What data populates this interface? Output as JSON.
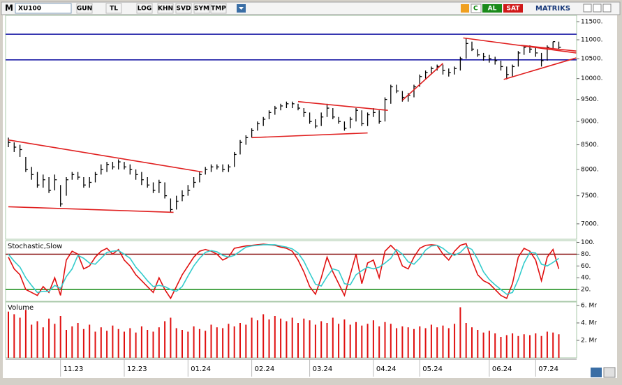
{
  "toolbar": {
    "logo": "M",
    "symbol": "XU100",
    "buttons": [
      "GUN",
      "TL",
      "LOG",
      "KHN",
      "SVD",
      "SYM",
      "TMP"
    ],
    "c": "C",
    "buy": "AL",
    "sell": "SAT",
    "brand": "MATRIKS"
  },
  "chart_data": [
    {
      "type": "ohlc",
      "categories": [
        null,
        null,
        null,
        null,
        null,
        null,
        null,
        null,
        null,
        "11.23",
        null,
        null,
        null,
        null,
        null,
        null,
        null,
        null,
        null,
        null,
        "12.23",
        null,
        null,
        null,
        null,
        null,
        null,
        null,
        null,
        null,
        null,
        "01.24",
        null,
        null,
        null,
        null,
        null,
        null,
        null,
        null,
        null,
        null,
        "02.24",
        null,
        null,
        null,
        null,
        null,
        null,
        null,
        null,
        null,
        "03.24",
        null,
        null,
        null,
        null,
        null,
        null,
        null,
        null,
        null,
        null,
        "04.24",
        null,
        null,
        null,
        null,
        null,
        null,
        null,
        "05.24",
        null,
        null,
        null,
        null,
        null,
        null,
        null,
        null,
        null,
        null,
        null,
        "06.24",
        null,
        null,
        null,
        null,
        null,
        null,
        null,
        "07.24",
        null,
        null,
        null,
        null
      ],
      "high": [
        8650,
        8550,
        8500,
        8250,
        8050,
        7950,
        7900,
        7850,
        7900,
        7700,
        7850,
        7950,
        7950,
        7850,
        7850,
        7950,
        8100,
        8150,
        8150,
        8200,
        8150,
        8100,
        8000,
        7950,
        7850,
        7750,
        7800,
        7750,
        7450,
        7500,
        7600,
        7700,
        7850,
        7950,
        8050,
        8100,
        8100,
        8100,
        8100,
        8350,
        8600,
        8700,
        8850,
        9000,
        9100,
        9250,
        9350,
        9400,
        9450,
        9450,
        9400,
        9300,
        9200,
        9050,
        9200,
        9400,
        9300,
        9100,
        9000,
        9100,
        9300,
        9250,
        9200,
        9300,
        9250,
        9550,
        9850,
        9850,
        9700,
        9650,
        9850,
        10100,
        10200,
        10300,
        10350,
        10350,
        10250,
        10300,
        10550,
        11050,
        10950,
        10750,
        10650,
        10600,
        10550,
        10450,
        10300,
        10350,
        10700,
        10850,
        10850,
        10800,
        10650,
        10850,
        10950,
        10950
      ],
      "low": [
        8450,
        8350,
        8250,
        7950,
        7800,
        7650,
        7650,
        7550,
        7600,
        7300,
        7500,
        7800,
        7800,
        7650,
        7650,
        7750,
        7900,
        7950,
        8000,
        8000,
        8000,
        7900,
        7800,
        7700,
        7650,
        7550,
        7550,
        7450,
        7200,
        7250,
        7400,
        7500,
        7650,
        7750,
        7900,
        7950,
        8000,
        7950,
        7950,
        8050,
        8300,
        8500,
        8650,
        8800,
        8900,
        9050,
        9150,
        9250,
        9300,
        9300,
        9250,
        9100,
        8950,
        8850,
        8900,
        9100,
        9050,
        8950,
        8800,
        8850,
        9000,
        8900,
        8900,
        9100,
        8950,
        9000,
        9400,
        9650,
        9450,
        9450,
        9550,
        9800,
        10000,
        10100,
        10200,
        10100,
        10050,
        10100,
        10200,
        10500,
        10700,
        10550,
        10450,
        10400,
        10350,
        10200,
        9980,
        10050,
        10300,
        10600,
        10650,
        10550,
        10300,
        10450,
        10750,
        10750
      ],
      "close": [
        8550,
        8450,
        8400,
        8000,
        7900,
        7700,
        7800,
        7600,
        7800,
        7350,
        7800,
        7900,
        7850,
        7700,
        7750,
        7900,
        8000,
        8100,
        8050,
        8150,
        8050,
        8000,
        7900,
        7800,
        7700,
        7600,
        7750,
        7500,
        7250,
        7400,
        7500,
        7600,
        7750,
        7900,
        8000,
        8050,
        8050,
        8000,
        8050,
        8300,
        8550,
        8650,
        8800,
        8950,
        9050,
        9200,
        9300,
        9350,
        9400,
        9400,
        9300,
        9200,
        9000,
        8900,
        9100,
        9300,
        9100,
        9000,
        8850,
        9050,
        9250,
        8950,
        9150,
        9200,
        9000,
        9500,
        9800,
        9700,
        9550,
        9600,
        9800,
        10050,
        10150,
        10250,
        10300,
        10200,
        10150,
        10250,
        10500,
        10900,
        10750,
        10600,
        10550,
        10500,
        10450,
        10300,
        10100,
        10300,
        10650,
        10800,
        10750,
        10650,
        10450,
        10800,
        10950,
        10800
      ],
      "color": "#000000",
      "log_scale": true,
      "ylim": [
        6740,
        11680
      ],
      "yticks": [
        {
          "value": 7000,
          "label": "7000."
        },
        {
          "value": 7500,
          "label": "7500."
        },
        {
          "value": 8000,
          "label": "8000."
        },
        {
          "value": 8500,
          "label": "8500."
        },
        {
          "value": 9000,
          "label": "9000."
        },
        {
          "value": 9500,
          "label": "9500."
        },
        {
          "value": 10000,
          "label": "10000."
        },
        {
          "value": 10500,
          "label": "10500."
        },
        {
          "value": 11000,
          "label": "11000."
        },
        {
          "value": 11500,
          "label": "11500."
        }
      ],
      "hlines": [
        {
          "value": 11150,
          "color": "#1a1aa6"
        },
        {
          "value": 10470,
          "color": "#1a1aa6"
        }
      ],
      "trendlines": [
        {
          "x": [
            0,
            33.5
          ],
          "y": [
            8600,
            7950
          ],
          "color": "#e02020"
        },
        {
          "x": [
            0,
            28.5
          ],
          "y": [
            7300,
            7200
          ],
          "color": "#e02020"
        },
        {
          "x": [
            42,
            62
          ],
          "y": [
            8650,
            8750
          ],
          "color": "#e02020"
        },
        {
          "x": [
            50,
            65.5
          ],
          "y": [
            9450,
            9250
          ],
          "color": "#e02020"
        },
        {
          "x": [
            68,
            75
          ],
          "y": [
            9480,
            10380
          ],
          "color": "#e02020"
        },
        {
          "x": [
            78.5,
            98
          ],
          "y": [
            11050,
            10650
          ],
          "color": "#e02020"
        },
        {
          "x": [
            85.5,
            98
          ],
          "y": [
            9980,
            10520
          ],
          "color": "#e02020"
        },
        {
          "x": [
            88.5,
            98
          ],
          "y": [
            10850,
            10700
          ],
          "color": "#e02020"
        }
      ]
    },
    {
      "type": "line",
      "title": "Stochastic,Slow",
      "series": [
        {
          "color": "#e01010",
          "values": [
            75,
            55,
            45,
            20,
            15,
            10,
            25,
            15,
            40,
            10,
            70,
            85,
            80,
            55,
            60,
            75,
            85,
            90,
            80,
            88,
            70,
            60,
            45,
            35,
            25,
            15,
            40,
            20,
            5,
            25,
            45,
            60,
            75,
            85,
            88,
            85,
            80,
            70,
            75,
            90,
            92,
            94,
            95,
            96,
            97,
            96,
            95,
            92,
            90,
            85,
            70,
            50,
            25,
            12,
            40,
            75,
            50,
            30,
            10,
            45,
            80,
            30,
            65,
            70,
            40,
            85,
            95,
            85,
            60,
            55,
            75,
            90,
            95,
            96,
            95,
            80,
            70,
            85,
            95,
            98,
            70,
            45,
            35,
            30,
            20,
            10,
            5,
            30,
            75,
            90,
            85,
            70,
            35,
            75,
            88,
            55
          ]
        },
        {
          "color": "#33cccc",
          "values": [
            80,
            68,
            58,
            40,
            27,
            15,
            17,
            17,
            27,
            22,
            42,
            55,
            78,
            73,
            65,
            63,
            73,
            83,
            85,
            86,
            80,
            73,
            58,
            47,
            35,
            25,
            27,
            25,
            20,
            17,
            25,
            43,
            60,
            73,
            83,
            86,
            84,
            78,
            75,
            78,
            85,
            92,
            94,
            95,
            96,
            96,
            96,
            94,
            92,
            89,
            82,
            68,
            48,
            29,
            26,
            42,
            55,
            52,
            30,
            28,
            45,
            52,
            58,
            55,
            58,
            65,
            73,
            88,
            80,
            67,
            63,
            73,
            87,
            94,
            95,
            90,
            82,
            78,
            83,
            93,
            88,
            71,
            50,
            37,
            28,
            20,
            12,
            15,
            37,
            65,
            83,
            82,
            63,
            60,
            66,
            73
          ]
        }
      ],
      "ylim": [
        0,
        103
      ],
      "yticks": [
        {
          "value": 20,
          "label": "20."
        },
        {
          "value": 40,
          "label": "40."
        },
        {
          "value": 60,
          "label": "60."
        },
        {
          "value": 80,
          "label": "80."
        },
        {
          "value": 100,
          "label": "100."
        }
      ],
      "levels": [
        {
          "value": 80,
          "color": "#800000"
        },
        {
          "value": 20,
          "color": "#008000"
        }
      ]
    },
    {
      "type": "bar",
      "title": "Volume",
      "values": [
        5.3,
        5.0,
        4.6,
        5.5,
        3.8,
        4.2,
        3.5,
        4.5,
        3.9,
        4.8,
        3.2,
        3.6,
        4.0,
        3.3,
        3.8,
        3.0,
        3.5,
        3.1,
        3.7,
        3.3,
        3.0,
        3.4,
        2.9,
        3.6,
        3.2,
        3.0,
        3.5,
        4.2,
        4.6,
        3.4,
        3.2,
        3.0,
        3.6,
        3.3,
        3.1,
        3.8,
        3.5,
        3.4,
        3.9,
        3.6,
        4.0,
        3.8,
        4.6,
        4.3,
        5.0,
        4.4,
        4.8,
        4.5,
        4.2,
        4.6,
        4.0,
        4.5,
        4.3,
        3.8,
        4.2,
        4.0,
        4.6,
        3.9,
        4.4,
        3.8,
        4.1,
        3.7,
        3.9,
        4.3,
        3.6,
        4.1,
        3.9,
        3.4,
        3.6,
        3.5,
        3.3,
        3.6,
        3.4,
        3.8,
        3.5,
        3.7,
        3.4,
        3.9,
        5.8,
        4.0,
        3.5,
        3.2,
        2.9,
        3.1,
        2.8,
        2.4,
        2.6,
        2.8,
        2.5,
        2.7,
        2.6,
        2.8,
        2.5,
        3.0,
        2.9,
        2.7
      ],
      "color": "#e01010",
      "ylim": [
        0,
        6.4
      ],
      "yticks": [
        {
          "value": 2,
          "label": "2. Mr"
        },
        {
          "value": 4,
          "label": "4. Mr"
        },
        {
          "value": 6,
          "label": "6. Mr"
        }
      ]
    }
  ]
}
